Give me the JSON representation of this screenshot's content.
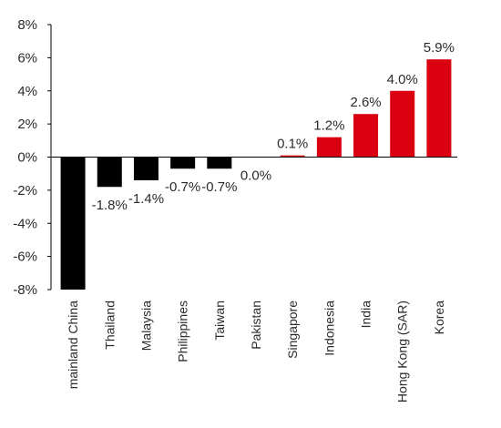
{
  "chart_data": {
    "type": "bar",
    "title": "",
    "xlabel": "",
    "ylabel": "",
    "ylim": [
      -8,
      8
    ],
    "yticks": [
      -8,
      -6,
      -4,
      -2,
      0,
      2,
      4,
      6,
      8
    ],
    "ytick_labels": [
      "-8%",
      "-6%",
      "-4%",
      "-2%",
      "0%",
      "2%",
      "4%",
      "6%",
      "8%"
    ],
    "categories": [
      "mainland China",
      "Thailand",
      "Malaysia",
      "Philippines",
      "Taiwan",
      "Pakistan",
      "Singapore",
      "Indonesia",
      "India",
      "Hong Kong (SAR)",
      "Korea"
    ],
    "values": [
      -8,
      -1.8,
      -1.4,
      -0.7,
      -0.7,
      0.0,
      0.1,
      1.2,
      2.6,
      4.0,
      5.9
    ],
    "data_labels": [
      "",
      "-1.8%",
      "-1.4%",
      "-0.7%",
      "-0.7%",
      "0.0%",
      "0.1%",
      "1.2%",
      "2.6%",
      "4.0%",
      "5.9%"
    ],
    "grid": false,
    "colors": {
      "negative": "#000000",
      "positive": "#db0011",
      "axis": "#000000",
      "text": "#2b2b2b"
    }
  }
}
